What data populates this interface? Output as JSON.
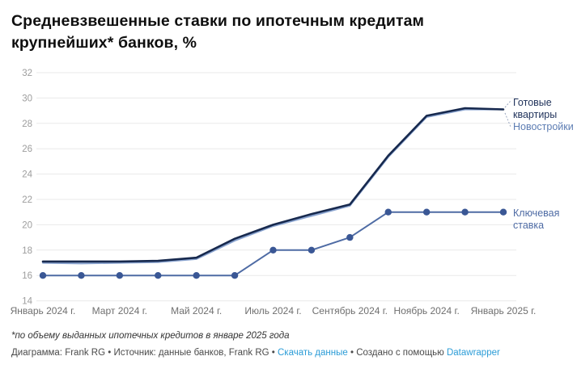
{
  "title": {
    "line1": "Средневзвешенные ставки по ипотечным кредитам",
    "line2": "крупнейших* банков, %"
  },
  "chart_data": {
    "type": "line",
    "x_months": [
      "Янв 2024",
      "Фев 2024",
      "Мар 2024",
      "Апр 2024",
      "Май 2024",
      "Июн 2024",
      "Июл 2024",
      "Авг 2024",
      "Сен 2024",
      "Окт 2024",
      "Ноя 2024",
      "Дек 2024",
      "Янв 2025"
    ],
    "x_tick_labels": [
      "Январь 2024 г.",
      "Март 2024 г.",
      "Май 2024 г.",
      "Июль 2024 г.",
      "Сентябрь 2024 г.",
      "Ноябрь 2024 г.",
      "Январь 2025 г."
    ],
    "x_tick_month_index": [
      0,
      2,
      4,
      6,
      8,
      10,
      12
    ],
    "y_ticks": [
      14,
      16,
      18,
      20,
      22,
      24,
      26,
      28,
      30,
      32
    ],
    "ylim": [
      14,
      32
    ],
    "grid": true,
    "legend_position": "right-end-labels",
    "series": [
      {
        "name": "Новостройки",
        "color": "#8aa4d0",
        "line_width": 2.2,
        "dots": false,
        "values": [
          17.0,
          16.95,
          17.0,
          17.05,
          17.3,
          18.75,
          19.9,
          20.7,
          21.5,
          25.35,
          28.5,
          29.1,
          29.1
        ]
      },
      {
        "name": "Готовые квартиры",
        "color": "#17294e",
        "line_width": 2.6,
        "dots": false,
        "values": [
          17.1,
          17.1,
          17.1,
          17.15,
          17.4,
          18.9,
          20.0,
          20.85,
          21.6,
          25.45,
          28.6,
          29.2,
          29.1
        ]
      },
      {
        "name": "Ключевая ставка",
        "color": "#4e6ba4",
        "dot_color": "#3a5795",
        "line_width": 2,
        "dots": true,
        "values": [
          16,
          16,
          16,
          16,
          16,
          16,
          18,
          18,
          19,
          21,
          21,
          21,
          21
        ]
      }
    ],
    "end_labels": [
      {
        "lines": [
          "Готовые",
          "квартиры"
        ],
        "color": "#22345c"
      },
      {
        "lines": [
          "Новостройки"
        ],
        "color": "#5d7db3"
      },
      {
        "lines": [
          "Ключевая",
          "ставка"
        ],
        "color": "#4e6ba4"
      }
    ],
    "colors": {
      "grid": "#e9e9e9",
      "y_tick_text": "#9d9d9d",
      "x_tick_text": "#6f6f6f",
      "leader": "#9aa7bf"
    }
  },
  "footnote": "*по объему выданных ипотечных кредитов в январе 2025 года",
  "footer": {
    "credits": "Диаграмма: Frank RG • Источник: данные банков, Frank RG • ",
    "download_label": "Скачать данные",
    "middle": " • Создано с помощью ",
    "tool_label": "Datawrapper",
    "link_color": "#2b9cd7"
  }
}
